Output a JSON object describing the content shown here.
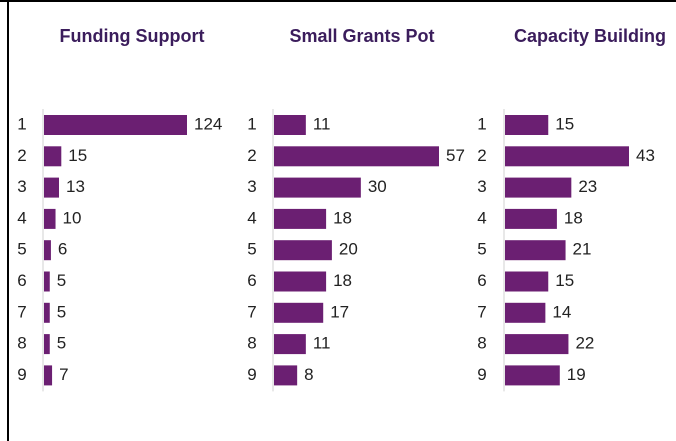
{
  "chart_data": [
    {
      "type": "barh",
      "title": "Funding Support",
      "categories": [
        "1",
        "2",
        "3",
        "4",
        "5",
        "6",
        "7",
        "8",
        "9"
      ],
      "values": [
        124,
        15,
        13,
        10,
        6,
        5,
        5,
        5,
        7
      ],
      "color": "#6b1f72",
      "xlim": [
        0,
        124
      ]
    },
    {
      "type": "barh",
      "title": "Small Grants Pot",
      "categories": [
        "1",
        "2",
        "3",
        "4",
        "5",
        "6",
        "7",
        "8",
        "9"
      ],
      "values": [
        11,
        57,
        30,
        18,
        20,
        18,
        17,
        11,
        8
      ],
      "color": "#6b1f72",
      "xlim": [
        0,
        57
      ]
    },
    {
      "type": "barh",
      "title": "Capacity Building",
      "categories": [
        "1",
        "2",
        "3",
        "4",
        "5",
        "6",
        "7",
        "8",
        "9"
      ],
      "values": [
        15,
        43,
        23,
        18,
        21,
        15,
        14,
        22,
        19
      ],
      "color": "#6b1f72",
      "xlim": [
        0,
        43
      ]
    }
  ]
}
